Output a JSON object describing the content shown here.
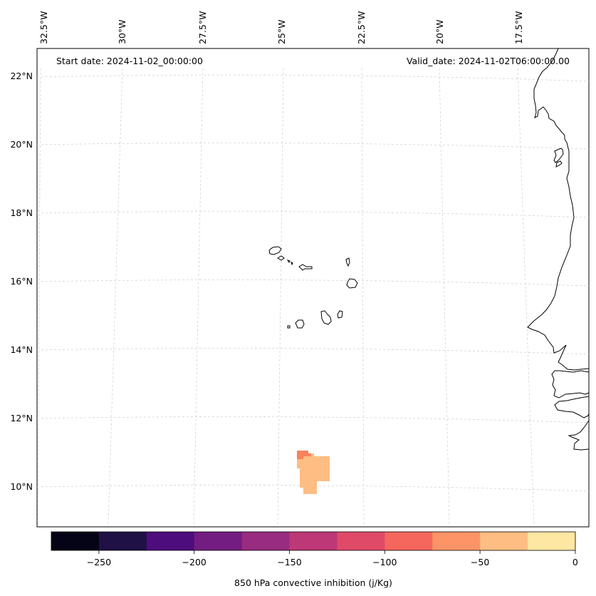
{
  "header": {
    "start_date": "Start date: 2024-11-02_00:00:00",
    "valid_date": "Valid_date: 2024-11-02T06:00:00.00"
  },
  "longitude_labels": [
    "32.5°W",
    "30°W",
    "27.5°W",
    "25°W",
    "22.5°W",
    "20°W",
    "17.5°W"
  ],
  "latitude_labels": [
    "22°N",
    "20°N",
    "18°N",
    "16°N",
    "14°N",
    "12°N",
    "10°N"
  ],
  "colorbar": {
    "label": "850 hPa convective inhibition (j/Kg)",
    "ticks": [
      "−250",
      "−200",
      "−150",
      "−100",
      "−50",
      "0"
    ],
    "colors": [
      "#050416",
      "#1f1145",
      "#4e0d7c",
      "#731c81",
      "#982c80",
      "#bd3877",
      "#df4a68",
      "#f5675c",
      "#fd9467",
      "#febd82",
      "#fde7a2"
    ]
  }
}
